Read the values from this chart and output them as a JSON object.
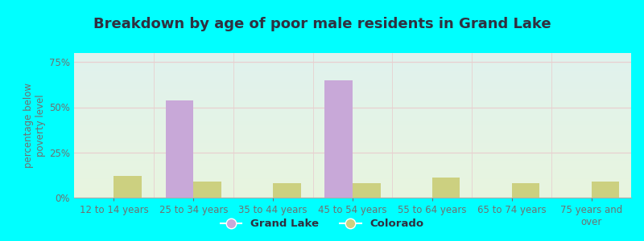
{
  "title": "Breakdown by age of poor male residents in Grand Lake",
  "categories": [
    "12 to 14 years",
    "25 to 34 years",
    "35 to 44 years",
    "45 to 54 years",
    "55 to 64 years",
    "65 to 74 years",
    "75 years and\nover"
  ],
  "grand_lake": [
    0,
    54.0,
    0,
    65.0,
    0,
    0,
    0
  ],
  "colorado": [
    12.0,
    9.0,
    8.0,
    8.0,
    11.0,
    8.0,
    9.0
  ],
  "grand_lake_color": "#c8a8d8",
  "colorado_color": "#ccd080",
  "ylabel": "percentage below\npoverty level",
  "ylim": [
    0,
    80
  ],
  "yticks": [
    0,
    25,
    50,
    75
  ],
  "yticklabels": [
    "0%",
    "25%",
    "50%",
    "75%"
  ],
  "bar_width": 0.35,
  "bg_top_left": "#c8ece4",
  "bg_bottom_right": "#eaf4e0",
  "grid_color": "#e8d0d0",
  "outer_bg": "#00ffff",
  "title_fontsize": 13,
  "axis_fontsize": 8.5,
  "tick_fontsize": 8.5,
  "legend_grand_lake": "Grand Lake",
  "legend_colorado": "Colorado",
  "title_color": "#303040",
  "tick_color": "#707070"
}
